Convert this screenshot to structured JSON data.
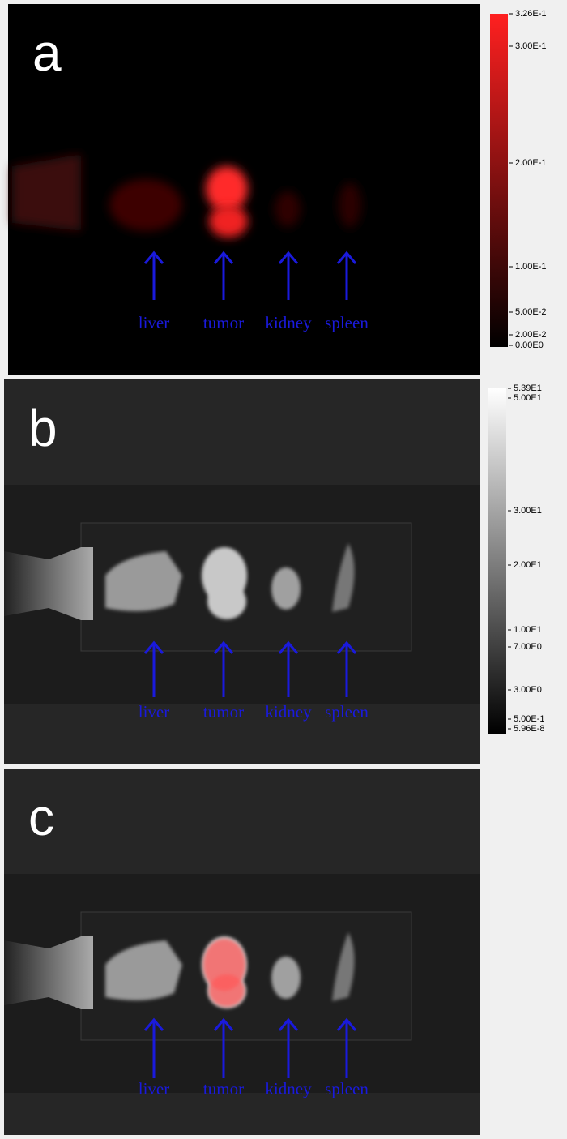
{
  "panels": [
    {
      "label": "a",
      "organs": [
        "liver",
        "tumor",
        "kidney",
        "spleen"
      ],
      "colorbar": [
        "3.26E-1",
        "3.00E-1",
        "2.00E-1",
        "1.00E-1",
        "5.00E-2",
        "2.00E-2",
        "0.00E0"
      ]
    },
    {
      "label": "b",
      "organs": [
        "liver",
        "tumor",
        "kidney",
        "spleen"
      ],
      "colorbar": [
        "5.39E1",
        "5.00E1",
        "3.00E1",
        "2.00E1",
        "1.00E1",
        "7.00E0",
        "3.00E0",
        "5.00E-1",
        "5.96E-8"
      ]
    },
    {
      "label": "c",
      "organs": [
        "liver",
        "tumor",
        "kidney",
        "spleen"
      ]
    }
  ]
}
